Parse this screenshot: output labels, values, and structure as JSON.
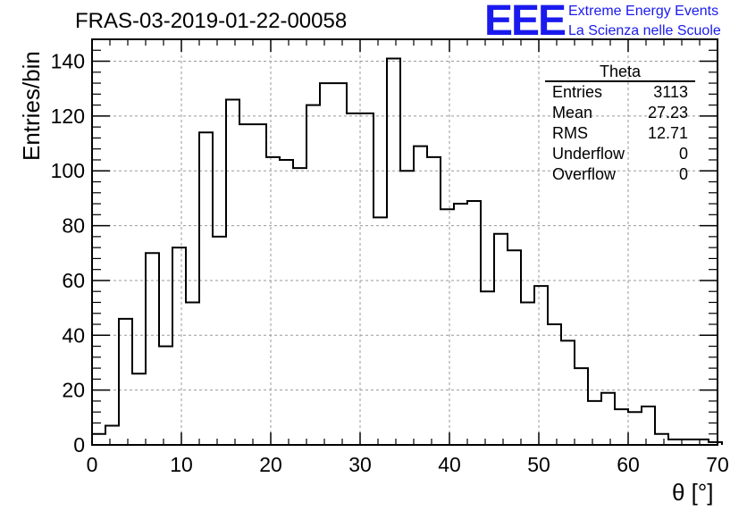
{
  "header": {
    "title": "FRAS-03-2019-01-22-00058",
    "logo_text": "EEE",
    "logo_line1": "Extreme Energy Events",
    "logo_line2": "La Scienza nelle Scuole",
    "brand_color": "#1a1aee"
  },
  "stats": {
    "name": "Theta",
    "rows": [
      {
        "label": "Entries",
        "value": "3113"
      },
      {
        "label": "Mean",
        "value": "27.23"
      },
      {
        "label": "RMS",
        "value": "12.71"
      },
      {
        "label": "Underflow",
        "value": "0"
      },
      {
        "label": "Overflow",
        "value": "0"
      }
    ]
  },
  "chart_data": {
    "type": "bar",
    "style": "step-histogram",
    "title": "FRAS-03-2019-01-22-00058",
    "xlabel": "θ [°]",
    "ylabel": "Entries/bin",
    "xlim": [
      0,
      70
    ],
    "ylim": [
      0,
      148
    ],
    "grid": true,
    "x_ticks": [
      0,
      10,
      20,
      30,
      40,
      50,
      60,
      70
    ],
    "y_ticks": [
      0,
      20,
      40,
      60,
      80,
      100,
      120,
      140
    ],
    "bin_width": 1.5,
    "bin_edges_start": 0,
    "values": [
      4,
      7,
      46,
      26,
      70,
      36,
      72,
      52,
      114,
      76,
      126,
      117,
      117,
      105,
      104,
      101,
      124,
      132,
      132,
      121,
      121,
      83,
      141,
      100,
      109,
      105,
      86,
      88,
      89,
      56,
      77,
      71,
      52,
      58,
      44,
      38,
      28,
      16,
      19,
      13,
      12,
      14,
      4,
      2,
      2,
      2,
      1
    ]
  }
}
